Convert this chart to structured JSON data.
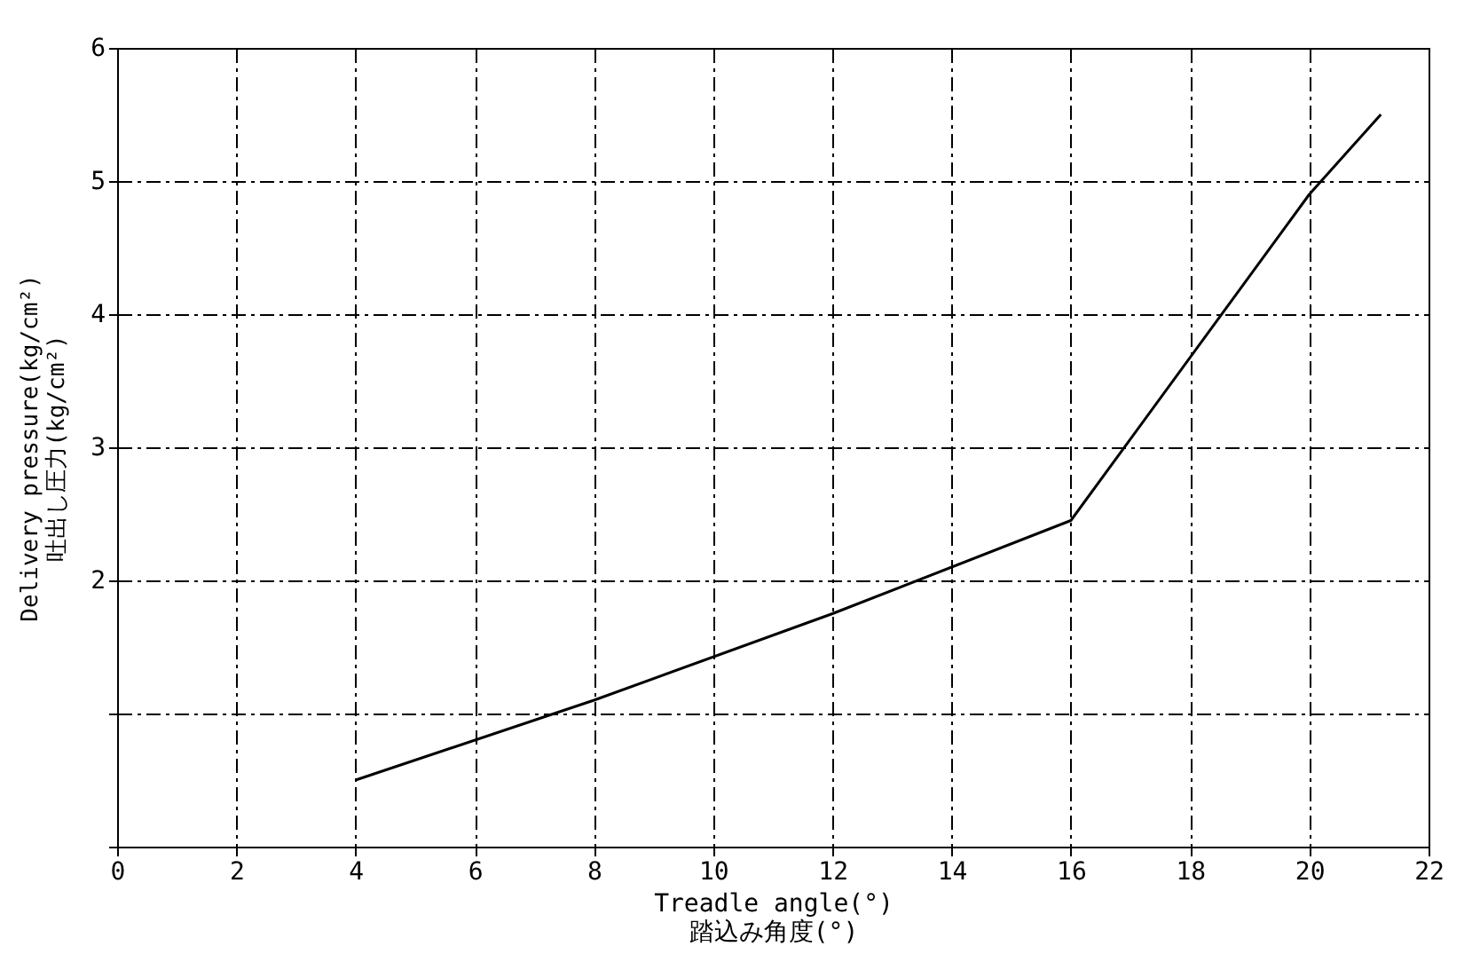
{
  "chart_data": {
    "type": "line",
    "xlabel": "Treadle angle(°)\n踏込み角度(°)",
    "ylabel": "Delivery pressure(kg/cm²)\n吐出し圧力(kg/cm²)",
    "x": [
      4,
      8,
      12,
      16,
      20,
      21.2
    ],
    "series": [
      {
        "color": "#000000",
        "values": [
          0.5,
          1.1,
          1.75,
          2.45,
          4.9,
          5.5
        ]
      }
    ],
    "xlim": [
      0,
      22
    ],
    "xticks": [
      0,
      2,
      4,
      6,
      8,
      10,
      12,
      14,
      16,
      18,
      20,
      22
    ],
    "ylim": [
      0,
      6
    ],
    "yticks": [
      {
        "value": 0,
        "label": null
      },
      {
        "value": 1,
        "label": null
      },
      2,
      3,
      4,
      5,
      6
    ],
    "grid": true,
    "marker": "none",
    "line_style": "solid"
  }
}
